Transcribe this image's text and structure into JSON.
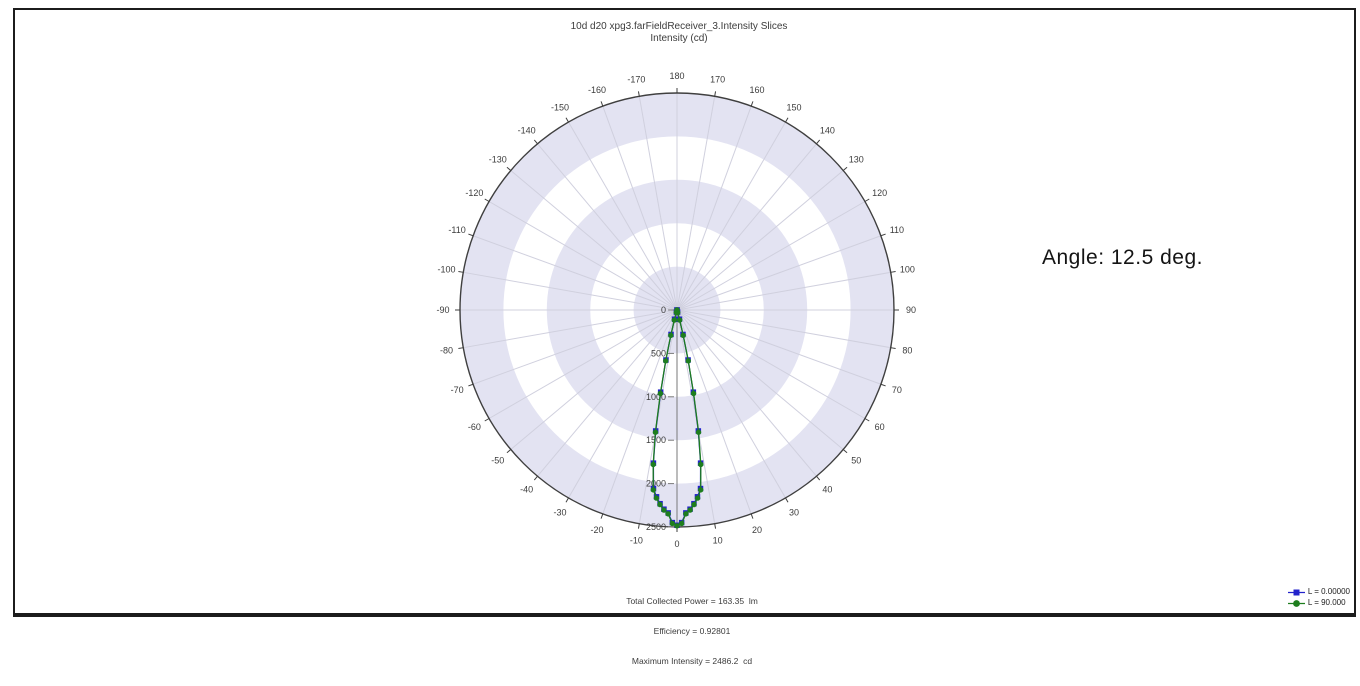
{
  "window": {
    "background": "#ffffff",
    "border_color": "#1c1c1c"
  },
  "chart_data": {
    "type": "line",
    "subtype": "polar-intensity-slices",
    "title": "10d d20 xpg3.farFieldReceiver_3.Intensity Slices",
    "subtitle": "Intensity (cd)",
    "zero_angle_location": "bottom",
    "angle_tick_labels": [
      0,
      10,
      20,
      30,
      40,
      50,
      60,
      70,
      80,
      90,
      100,
      110,
      120,
      130,
      140,
      150,
      160,
      170,
      180,
      -170,
      -160,
      -150,
      -140,
      -130,
      -120,
      -110,
      -100,
      -90,
      -80,
      -70,
      -60,
      -50,
      -40,
      -30,
      -20,
      -10
    ],
    "r_ticks": [
      0,
      500,
      1000,
      1500,
      2000,
      2500
    ],
    "r_max": 2500,
    "grid": true,
    "band_color": "#e3e3f2",
    "spoke_color": "#d0d0de",
    "outline_color": "#3f3f3f",
    "axis_color": "#7a7a7a",
    "label_color": "#3c3c3c",
    "series": [
      {
        "name": "L = 0.00000",
        "color": "#2323cb",
        "marker": "square",
        "angles_deg": [
          -17.5,
          -16.25,
          -15,
          -13.75,
          -12.5,
          -11.25,
          -10,
          -8.75,
          -7.5,
          -6.25,
          -5,
          -3.75,
          -2.5,
          -1.25,
          0,
          1.25,
          2.5,
          3.75,
          5,
          6.25,
          7.5,
          8.75,
          10,
          11.25,
          12.5,
          13.75,
          15,
          16.25,
          17.5
        ],
        "intensity_cd": [
          0,
          25,
          110,
          290,
          590,
          965,
          1415,
          1785,
          2075,
          2165,
          2240,
          2300,
          2340,
          2450,
          2480,
          2450,
          2340,
          2300,
          2240,
          2165,
          2075,
          1785,
          1415,
          965,
          590,
          290,
          110,
          25,
          0
        ]
      },
      {
        "name": "L = 90.000",
        "color": "#1e7e1e",
        "marker": "circle",
        "angles_deg": [
          -17.5,
          -16.25,
          -15,
          -13.75,
          -12.5,
          -11.25,
          -10,
          -8.75,
          -7.5,
          -6.25,
          -5,
          -3.75,
          -2.5,
          -1.25,
          0,
          1.25,
          2.5,
          3.75,
          5,
          6.25,
          7.5,
          8.75,
          10,
          11.25,
          12.5,
          13.75,
          15,
          16.25,
          17.5
        ],
        "intensity_cd": [
          0,
          30,
          120,
          300,
          600,
          980,
          1430,
          1800,
          2090,
          2180,
          2250,
          2310,
          2350,
          2460,
          2486.2,
          2460,
          2350,
          2310,
          2250,
          2180,
          2090,
          1800,
          1430,
          980,
          600,
          300,
          120,
          30,
          0
        ]
      }
    ],
    "legend_position": "bottom-right",
    "stats": {
      "total_collected_power_lm": 163.35,
      "efficiency": 0.92801,
      "maximum_intensity_cd": 2486.2,
      "lines": [
        "Total Collected Power = 163.35  lm",
        "Efficiency = 0.92801",
        "Maximum Intensity = 2486.2  cd"
      ]
    }
  },
  "annotation": {
    "angle_text": "Angle: 12.5 deg."
  }
}
